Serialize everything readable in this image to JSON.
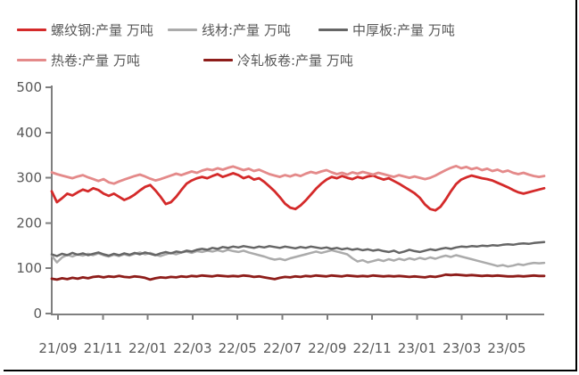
{
  "chart_data": {
    "type": "line",
    "title": "",
    "unit": "万吨",
    "ylim": [
      0,
      500
    ],
    "y_ticks": [
      0,
      100,
      200,
      300,
      400,
      500
    ],
    "x_tick_labels": [
      "21/09",
      "21/11",
      "22/01",
      "22/03",
      "22/05",
      "22/07",
      "22/09",
      "22/11",
      "23/01",
      "23/03",
      "23/05"
    ],
    "grid": false,
    "legend_position": "top-left",
    "axis_color": "#7F7F7F",
    "tick_text_color": "#595959",
    "series": [
      {
        "id": "rebar",
        "name": "螺纹钢:产量 万吨",
        "color": "#D42A2A",
        "values": [
          270,
          246,
          255,
          265,
          261,
          268,
          274,
          270,
          277,
          273,
          265,
          260,
          265,
          258,
          251,
          256,
          263,
          272,
          280,
          284,
          272,
          258,
          242,
          246,
          258,
          273,
          287,
          294,
          299,
          302,
          299,
          304,
          308,
          302,
          306,
          310,
          306,
          299,
          303,
          296,
          299,
          291,
          281,
          270,
          257,
          243,
          234,
          231,
          239,
          250,
          263,
          276,
          287,
          296,
          302,
          299,
          304,
          300,
          297,
          302,
          299,
          303,
          305,
          300,
          296,
          299,
          293,
          287,
          280,
          273,
          266,
          256,
          241,
          231,
          228,
          236,
          252,
          270,
          286,
          296,
          301,
          305,
          302,
          299,
          297,
          294,
          289,
          284,
          279,
          273,
          268,
          265,
          268,
          271,
          274,
          277
        ]
      },
      {
        "id": "wire-rod",
        "name": "线材:产量 万吨",
        "color": "#ABABAB",
        "values": [
          128,
          113,
          124,
          130,
          126,
          131,
          128,
          132,
          129,
          133,
          129,
          126,
          130,
          127,
          131,
          128,
          132,
          135,
          131,
          134,
          130,
          127,
          131,
          134,
          131,
          135,
          137,
          134,
          138,
          136,
          139,
          137,
          140,
          137,
          141,
          138,
          136,
          139,
          135,
          132,
          129,
          126,
          122,
          119,
          121,
          118,
          122,
          125,
          128,
          131,
          134,
          137,
          134,
          137,
          140,
          137,
          134,
          131,
          122,
          115,
          118,
          113,
          116,
          119,
          116,
          120,
          117,
          121,
          118,
          122,
          119,
          123,
          120,
          124,
          121,
          125,
          128,
          125,
          129,
          126,
          123,
          120,
          117,
          114,
          111,
          108,
          105,
          107,
          104,
          106,
          109,
          107,
          110,
          112,
          111,
          112
        ]
      },
      {
        "id": "medium-plate",
        "name": "中厚板:产量 万吨",
        "color": "#666666",
        "values": [
          131,
          127,
          132,
          129,
          134,
          130,
          133,
          129,
          132,
          135,
          131,
          128,
          132,
          129,
          133,
          130,
          134,
          131,
          135,
          132,
          129,
          133,
          136,
          133,
          137,
          135,
          139,
          137,
          141,
          143,
          141,
          145,
          143,
          147,
          145,
          148,
          146,
          149,
          147,
          145,
          148,
          146,
          149,
          147,
          145,
          148,
          146,
          144,
          147,
          145,
          148,
          146,
          144,
          146,
          143,
          145,
          142,
          144,
          141,
          143,
          140,
          142,
          139,
          141,
          138,
          136,
          139,
          134,
          137,
          141,
          138,
          136,
          139,
          142,
          140,
          143,
          145,
          143,
          146,
          148,
          147,
          149,
          148,
          150,
          149,
          151,
          150,
          152,
          153,
          152,
          154,
          155,
          154,
          156,
          157,
          158
        ]
      },
      {
        "id": "hot-coil",
        "name": "热卷:产量 万吨",
        "color": "#E48A8A",
        "values": [
          312,
          308,
          305,
          302,
          299,
          303,
          306,
          301,
          297,
          293,
          297,
          290,
          287,
          292,
          296,
          300,
          304,
          307,
          303,
          298,
          294,
          297,
          301,
          305,
          309,
          306,
          310,
          314,
          311,
          316,
          319,
          317,
          321,
          318,
          322,
          325,
          321,
          317,
          320,
          315,
          318,
          313,
          308,
          305,
          302,
          306,
          303,
          307,
          304,
          309,
          313,
          310,
          314,
          317,
          312,
          308,
          311,
          307,
          312,
          309,
          313,
          310,
          307,
          311,
          308,
          305,
          302,
          306,
          303,
          300,
          303,
          300,
          297,
          300,
          305,
          311,
          317,
          322,
          326,
          321,
          324,
          319,
          322,
          317,
          320,
          315,
          318,
          313,
          316,
          311,
          308,
          311,
          307,
          304,
          302,
          304
        ]
      },
      {
        "id": "cold-rolled",
        "name": "冷轧板卷:产量 万吨",
        "color": "#8E1D1A",
        "values": [
          77,
          75,
          78,
          76,
          79,
          77,
          80,
          78,
          81,
          82,
          80,
          82,
          81,
          83,
          81,
          80,
          82,
          81,
          79,
          75,
          78,
          80,
          79,
          81,
          80,
          82,
          81,
          83,
          82,
          84,
          83,
          82,
          84,
          83,
          82,
          83,
          82,
          84,
          83,
          81,
          82,
          80,
          78,
          76,
          79,
          81,
          80,
          82,
          81,
          83,
          82,
          84,
          83,
          82,
          84,
          83,
          82,
          84,
          83,
          82,
          83,
          82,
          84,
          83,
          82,
          83,
          82,
          83,
          82,
          81,
          82,
          81,
          80,
          82,
          81,
          83,
          86,
          85,
          86,
          85,
          84,
          85,
          84,
          83,
          84,
          83,
          84,
          83,
          82,
          82,
          83,
          82,
          83,
          84,
          83,
          83
        ]
      }
    ]
  }
}
